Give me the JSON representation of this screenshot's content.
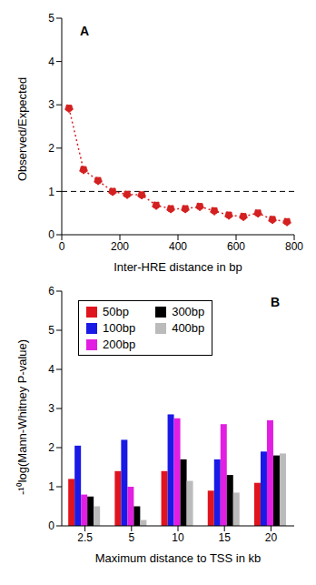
{
  "chart_data": [
    {
      "type": "line",
      "panel_label": "A",
      "x_label": "Inter-HRE distance in bp",
      "y_label": "Observed/Expected",
      "x": [
        25,
        75,
        125,
        175,
        225,
        275,
        325,
        375,
        425,
        475,
        525,
        575,
        625,
        675,
        725,
        775
      ],
      "values": [
        2.92,
        1.5,
        1.25,
        1.0,
        0.93,
        0.92,
        0.68,
        0.6,
        0.6,
        0.65,
        0.55,
        0.45,
        0.42,
        0.5,
        0.35,
        0.3
      ],
      "color": "#d42020",
      "marker": "circle",
      "line_style": "dotted",
      "hline": 1,
      "xlim": [
        0,
        800
      ],
      "xticks": [
        0,
        200,
        400,
        600,
        800
      ],
      "ylim": [
        0,
        5
      ],
      "yticks": [
        0,
        1,
        2,
        3,
        4,
        5
      ]
    },
    {
      "type": "bar",
      "panel_label": "B",
      "x_label": "Maximum distance to TSS in kb",
      "y_label": "-¹⁰log(Mann-Whitney P-value)",
      "categories": [
        "2.5",
        "5",
        "10",
        "15",
        "20"
      ],
      "series": [
        {
          "name": "50bp",
          "color": "#e0141e",
          "values": [
            1.2,
            1.4,
            1.4,
            0.9,
            1.1
          ]
        },
        {
          "name": "100bp",
          "color": "#1a1ae6",
          "values": [
            2.05,
            2.2,
            2.85,
            1.7,
            1.9
          ]
        },
        {
          "name": "200bp",
          "color": "#e21ee2",
          "values": [
            0.8,
            1.0,
            2.75,
            2.6,
            2.7
          ]
        },
        {
          "name": "300bp",
          "color": "#000000",
          "values": [
            0.75,
            0.5,
            1.7,
            1.3,
            1.8
          ]
        },
        {
          "name": "400bp",
          "color": "#bbbbbb",
          "values": [
            0.5,
            0.15,
            1.15,
            0.85,
            1.85
          ]
        }
      ],
      "legend": "upper left",
      "ylim": [
        0,
        6
      ],
      "yticks": [
        0,
        1,
        2,
        3,
        4,
        5,
        6
      ]
    }
  ]
}
